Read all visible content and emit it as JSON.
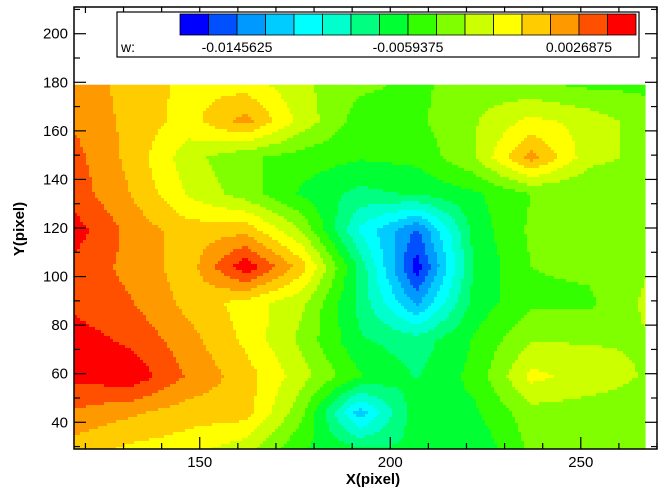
{
  "chart_data": {
    "type": "heatmap",
    "title": "",
    "xlabel": "X(pixel)",
    "ylabel": "Y(pixel)",
    "xlim": [
      117,
      270
    ],
    "ylim": [
      29,
      211
    ],
    "data_extent": {
      "x": [
        117,
        267
      ],
      "y": [
        29,
        179
      ]
    },
    "x_ticks": [
      150,
      200,
      250
    ],
    "y_ticks": [
      40,
      60,
      80,
      100,
      120,
      140,
      160,
      180,
      200
    ],
    "x_tick_labels": [
      "150",
      "200",
      "250"
    ],
    "y_tick_labels": [
      "40",
      "60",
      "80",
      "100",
      "120",
      "140",
      "160",
      "180",
      "200"
    ],
    "legend": {
      "variable": "w:",
      "labels": [
        "-0.0145625",
        "-0.0059375",
        "0.0026875"
      ],
      "label_values": [
        -0.0145625,
        -0.0059375,
        0.0026875
      ],
      "min": -0.0174375,
      "max": 0.0055625,
      "levels": 16,
      "colors": [
        "#0000ff",
        "#0050ff",
        "#0099ff",
        "#00ccff",
        "#00ffff",
        "#00ffcc",
        "#00ff80",
        "#00ff33",
        "#33ff00",
        "#80ff00",
        "#ccff00",
        "#ffff00",
        "#ffcc00",
        "#ff9900",
        "#ff5000",
        "#ff0000"
      ],
      "placement": "top"
    },
    "grid": false,
    "field_nodes": {
      "x": [
        117,
        132,
        147,
        162,
        177,
        192,
        207,
        222,
        237,
        252,
        267
      ],
      "y": [
        29,
        44,
        59,
        74,
        89,
        104,
        119,
        134,
        149,
        164,
        179
      ],
      "w": [
        [
          0.0005,
          -0.0005,
          -0.001,
          -0.0025,
          -0.0058,
          -0.0072,
          -0.0072,
          -0.0072,
          -0.0042,
          -0.0036,
          -0.0036
        ],
        [
          0.0025,
          0.0015,
          0.0005,
          0.0005,
          -0.0042,
          -0.0125,
          -0.0062,
          -0.0062,
          -0.0036,
          -0.0038,
          -0.0038
        ],
        [
          0.0045,
          0.0052,
          0.0025,
          0.0005,
          -0.0025,
          -0.0058,
          -0.0075,
          -0.0055,
          -0.0012,
          -0.0022,
          -0.0032
        ],
        [
          0.0048,
          0.0038,
          0.0018,
          -0.0005,
          -0.0035,
          -0.0072,
          -0.0082,
          -0.0058,
          -0.0032,
          -0.0032,
          -0.0032
        ],
        [
          0.0038,
          0.0028,
          0.0008,
          -0.0008,
          -0.0028,
          -0.0078,
          -0.0135,
          -0.0068,
          -0.0048,
          -0.0048,
          -0.0028
        ],
        [
          0.0038,
          0.0022,
          0.0005,
          0.0052,
          0.0005,
          -0.0078,
          -0.0168,
          -0.0072,
          -0.0045,
          -0.0042,
          -0.0032
        ],
        [
          0.0048,
          0.0022,
          0.0005,
          0.0008,
          -0.0032,
          -0.0105,
          -0.0148,
          -0.0068,
          -0.0042,
          -0.0042,
          -0.0042
        ],
        [
          0.0035,
          0.0012,
          -0.0018,
          -0.0038,
          -0.0062,
          -0.0078,
          -0.0072,
          -0.0062,
          -0.0045,
          -0.0045,
          -0.0045
        ],
        [
          0.0032,
          0.0008,
          -0.0025,
          -0.0042,
          -0.0052,
          -0.0058,
          -0.0055,
          -0.0032,
          0.0018,
          -0.0025,
          -0.0035
        ],
        [
          0.0025,
          0.0008,
          -0.0008,
          0.0018,
          -0.0022,
          -0.0052,
          -0.0048,
          -0.0032,
          -0.0012,
          -0.0022,
          -0.0038
        ],
        [
          0.0025,
          0.0005,
          -0.0005,
          -0.0008,
          -0.0028,
          -0.0042,
          -0.0048,
          -0.0038,
          -0.0042,
          -0.0048,
          -0.0048
        ]
      ]
    }
  }
}
